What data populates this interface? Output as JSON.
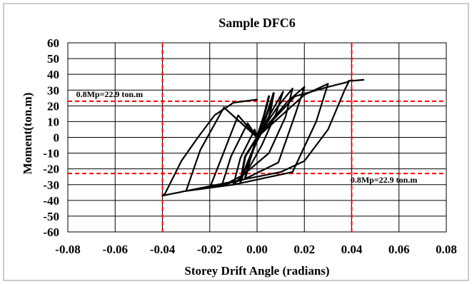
{
  "chart_data": {
    "type": "line",
    "title": "Sample DFC6",
    "xlabel": "Storey Drift Angle (radians)",
    "ylabel": "Moment(ton.m)",
    "xlim": [
      -0.08,
      0.08
    ],
    "ylim": [
      -60,
      60
    ],
    "xticks": [
      "-0.08",
      "-0.06",
      "-0.04",
      "-0.02",
      "0.00",
      "0.02",
      "0.04",
      "0.06",
      "0.08"
    ],
    "yticks": [
      "60",
      "50",
      "40",
      "30",
      "20",
      "10",
      "0",
      "-10",
      "-20",
      "-30",
      "-40",
      "-50",
      "-60"
    ],
    "grid": true,
    "reference_lines": [
      {
        "orientation": "horizontal",
        "value": 22.9,
        "color": "#ff0000",
        "style": "dashed"
      },
      {
        "orientation": "horizontal",
        "value": -22.9,
        "color": "#ff0000",
        "style": "dashed"
      },
      {
        "orientation": "vertical",
        "value": -0.04,
        "color": "#ff0000",
        "style": "dashed"
      },
      {
        "orientation": "vertical",
        "value": 0.04,
        "color": "#ff0000",
        "style": "dashed"
      }
    ],
    "annotations": [
      {
        "text": "0.8Mp=22.9 ton.m",
        "x": -0.0765,
        "y": 27.5
      },
      {
        "text": "0.8Mp=22.9 ton.m",
        "x": 0.0395,
        "y": -27
      }
    ],
    "series": [
      {
        "color": "#000000",
        "x": [
          0,
          0.003,
          0.005,
          0.003,
          0,
          -0.003,
          -0.005,
          -0.003,
          0
        ],
        "y": [
          0,
          14,
          26,
          14,
          0,
          -14,
          -26,
          -14,
          0
        ]
      },
      {
        "color": "#000000",
        "x": [
          0,
          0.004,
          0.007,
          0.005,
          0,
          -0.004,
          -0.007,
          -0.005,
          0
        ],
        "y": [
          0,
          14,
          28,
          12,
          -2,
          -16,
          -28,
          -12,
          0
        ]
      },
      {
        "color": "#000000",
        "x": [
          0,
          0.006,
          0.011,
          0.008,
          0.002,
          -0.004,
          -0.01,
          -0.007,
          -0.001,
          0
        ],
        "y": [
          0,
          16,
          29,
          15,
          -5,
          -21,
          -30,
          -13,
          5,
          0
        ]
      },
      {
        "color": "#000000",
        "x": [
          0,
          0.009,
          0.015,
          0.012,
          0.005,
          -0.006,
          -0.015,
          -0.011,
          -0.004,
          0
        ],
        "y": [
          0,
          20,
          31,
          13,
          -10,
          -24,
          -31,
          -12,
          9,
          0
        ]
      },
      {
        "color": "#000000",
        "x": [
          0,
          0.013,
          0.02,
          0.016,
          0.009,
          -0.006,
          -0.02,
          -0.015,
          -0.008,
          0
        ],
        "y": [
          0,
          23,
          32,
          14,
          -16,
          -27,
          -32,
          -13,
          14,
          0
        ]
      },
      {
        "color": "#000000",
        "x": [
          0,
          0.02,
          0.03,
          0.025,
          0.015,
          -0.01,
          -0.03,
          -0.024,
          -0.014,
          0
        ],
        "y": [
          0,
          27,
          34,
          10,
          -22,
          -30,
          -34,
          -8,
          19,
          0
        ]
      },
      {
        "color": "#000000",
        "x": [
          0,
          0.016,
          0.03,
          0.038,
          0.039,
          0.037,
          0.03,
          0.02,
          0.01,
          0.0,
          -0.01,
          -0.02,
          -0.03,
          -0.04,
          -0.039,
          -0.037,
          -0.032,
          -0.025,
          -0.018,
          -0.01,
          0
        ],
        "y": [
          0,
          26,
          32,
          35,
          36,
          30,
          5,
          -15,
          -22,
          -25,
          -28,
          -31,
          -34,
          -37,
          -36,
          -30,
          -15,
          0,
          14,
          22,
          24
        ]
      },
      {
        "color": "#000000",
        "x": [
          0.039,
          0.041,
          0.045
        ],
        "y": [
          36,
          36,
          36.5
        ]
      }
    ]
  }
}
